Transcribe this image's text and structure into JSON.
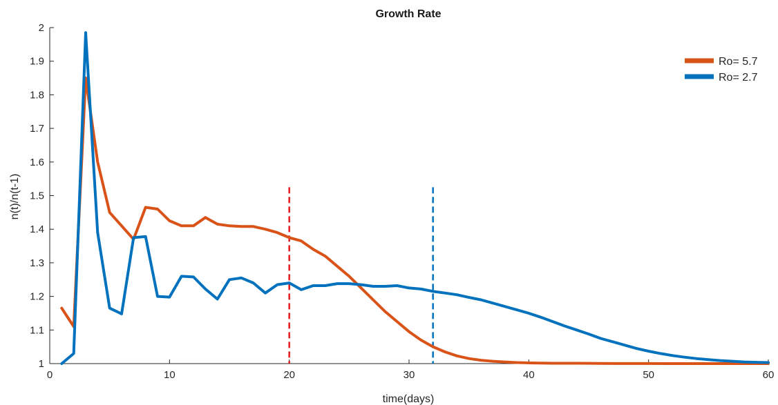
{
  "chart_data": {
    "type": "line",
    "title": "Growth Rate",
    "xlabel": "time(days)",
    "ylabel": "n(t)/n(t-1)",
    "xlim": [
      0,
      60
    ],
    "ylim": [
      1,
      2
    ],
    "x_ticks": [
      "0",
      "10",
      "20",
      "30",
      "40",
      "50",
      "60"
    ],
    "y_ticks": [
      "1",
      "1.1",
      "1.2",
      "1.3",
      "1.4",
      "1.5",
      "1.6",
      "1.7",
      "1.8",
      "1.9",
      "2"
    ],
    "grid": false,
    "legend_position": "top-right",
    "series": [
      {
        "name": "Ro= 5.7",
        "color": "#D95319",
        "x": [
          1,
          2,
          3,
          4,
          5,
          6,
          7,
          8,
          9,
          10,
          11,
          12,
          13,
          14,
          15,
          16,
          17,
          18,
          19,
          20,
          21,
          22,
          23,
          24,
          25,
          26,
          27,
          28,
          29,
          30,
          31,
          32,
          33,
          34,
          35,
          36,
          37,
          38,
          39,
          40,
          42,
          44,
          46,
          48,
          50,
          52,
          54,
          56,
          58,
          60
        ],
        "y": [
          1.165,
          1.11,
          1.85,
          1.6,
          1.45,
          1.41,
          1.37,
          1.465,
          1.46,
          1.425,
          1.41,
          1.41,
          1.435,
          1.415,
          1.41,
          1.408,
          1.408,
          1.4,
          1.39,
          1.375,
          1.365,
          1.34,
          1.32,
          1.29,
          1.26,
          1.225,
          1.19,
          1.155,
          1.125,
          1.095,
          1.07,
          1.05,
          1.035,
          1.023,
          1.015,
          1.01,
          1.007,
          1.005,
          1.003,
          1.002,
          1.001,
          1.001,
          1.0005,
          1.0003,
          1.0002,
          1.0001,
          1.0001,
          1.0,
          1.0,
          1.0
        ]
      },
      {
        "name": "Ro= 2.7",
        "color": "#0072BD",
        "x": [
          1,
          2,
          3,
          4,
          5,
          6,
          7,
          8,
          9,
          10,
          11,
          12,
          13,
          14,
          15,
          16,
          17,
          18,
          19,
          20,
          21,
          22,
          23,
          24,
          25,
          26,
          27,
          28,
          29,
          30,
          31,
          32,
          33,
          34,
          35,
          36,
          37,
          38,
          39,
          40,
          41,
          42,
          43,
          44,
          45,
          46,
          47,
          48,
          49,
          50,
          51,
          52,
          53,
          54,
          55,
          56,
          57,
          58,
          59,
          60
        ],
        "y": [
          1.0,
          1.03,
          1.985,
          1.39,
          1.165,
          1.148,
          1.375,
          1.378,
          1.2,
          1.198,
          1.26,
          1.258,
          1.222,
          1.192,
          1.25,
          1.255,
          1.24,
          1.21,
          1.235,
          1.24,
          1.22,
          1.232,
          1.232,
          1.238,
          1.238,
          1.235,
          1.23,
          1.23,
          1.232,
          1.225,
          1.222,
          1.215,
          1.21,
          1.205,
          1.197,
          1.19,
          1.18,
          1.17,
          1.16,
          1.15,
          1.138,
          1.125,
          1.112,
          1.1,
          1.088,
          1.075,
          1.065,
          1.055,
          1.045,
          1.037,
          1.03,
          1.024,
          1.019,
          1.015,
          1.012,
          1.009,
          1.007,
          1.005,
          1.004,
          1.003
        ]
      }
    ],
    "vlines": [
      {
        "x": 20,
        "color": "#E41A1C",
        "style": "dashed",
        "ymax": 1.525
      },
      {
        "x": 32,
        "color": "#0072BD",
        "style": "dashed",
        "ymax": 1.525
      }
    ]
  }
}
